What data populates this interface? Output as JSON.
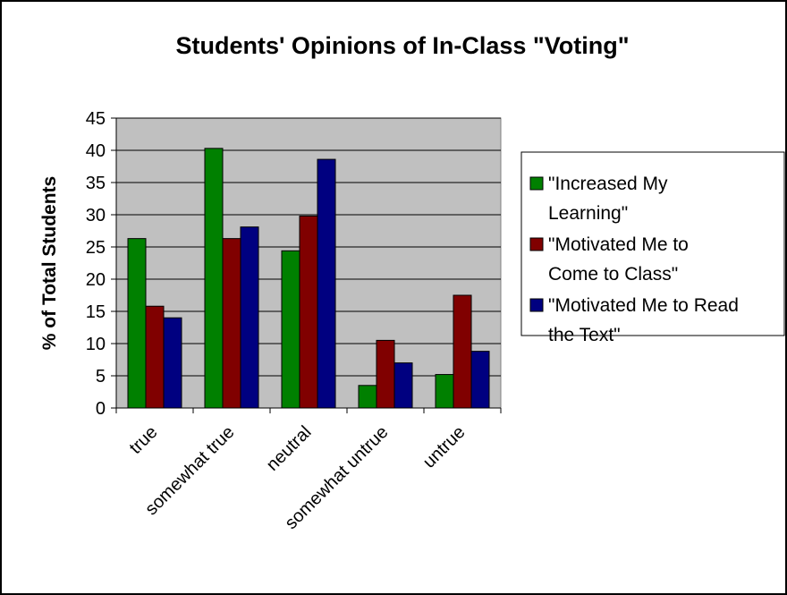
{
  "chart_data": {
    "type": "bar",
    "title": "Students' Opinions of In-Class \"Voting\"",
    "ylabel": "% of Total Students",
    "xlabel": "",
    "ylim": [
      0,
      45
    ],
    "yticks": [
      "0",
      "5",
      "10",
      "15",
      "20",
      "25",
      "30",
      "35",
      "40",
      "45"
    ],
    "categories": [
      "true",
      "somewhat true",
      "neutral",
      "somewhat untrue",
      "untrue"
    ],
    "series": [
      {
        "name": "\"Increased My Learning\"",
        "legend_lines": [
          "\"Increased My",
          "Learning\""
        ],
        "color": "#008000",
        "values": [
          26.3,
          40.3,
          24.4,
          3.5,
          5.2
        ]
      },
      {
        "name": "\"Motivated Me to Come to Class\"",
        "legend_lines": [
          "\"Motivated Me to",
          "Come to Class\""
        ],
        "color": "#800000",
        "values": [
          15.8,
          26.3,
          29.8,
          10.5,
          17.5
        ]
      },
      {
        "name": "\"Motivated Me to Read the Text\"",
        "legend_lines": [
          "\"Motivated Me to Read",
          "the Text\""
        ],
        "color": "#000080",
        "values": [
          14.0,
          28.1,
          38.6,
          7.0,
          8.8
        ]
      }
    ],
    "grid": true,
    "plot_background": "#c0c0c0",
    "legend_position": "right"
  }
}
